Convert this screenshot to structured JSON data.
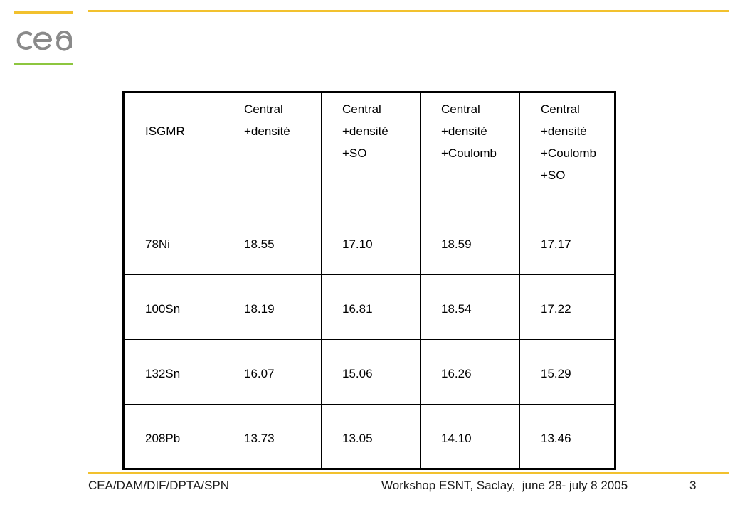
{
  "header": {
    "logo_text": "cea"
  },
  "table": {
    "head_label": "ISGMR",
    "columns": [
      [
        "Central",
        "+densité"
      ],
      [
        "Central",
        "+densité",
        "+SO"
      ],
      [
        "Central",
        "+densité",
        "+Coulomb"
      ],
      [
        "Central",
        "+densité",
        "+Coulomb",
        "+SO"
      ]
    ],
    "rows": [
      {
        "nucleus": "78Ni",
        "values": [
          "18.55",
          "17.10",
          "18.59",
          "17.17"
        ]
      },
      {
        "nucleus": "100Sn",
        "values": [
          "18.19",
          "16.81",
          "18.54",
          "17.22"
        ]
      },
      {
        "nucleus": "132Sn",
        "values": [
          "16.07",
          "15.06",
          "16.26",
          "15.29"
        ]
      },
      {
        "nucleus": "208Pb",
        "values": [
          "13.73",
          "13.05",
          "14.10",
          "13.46"
        ]
      }
    ]
  },
  "footer": {
    "affiliation": "CEA/DAM/DIF/DPTA/SPN",
    "event": "Workshop ESNT, Saclay,  june 28- july 8 2005",
    "page_number": "3"
  },
  "colors": {
    "accent_yellow": "#f2c12e",
    "accent_green": "#8dc63f",
    "logo_gray": "#8a8a8a"
  }
}
